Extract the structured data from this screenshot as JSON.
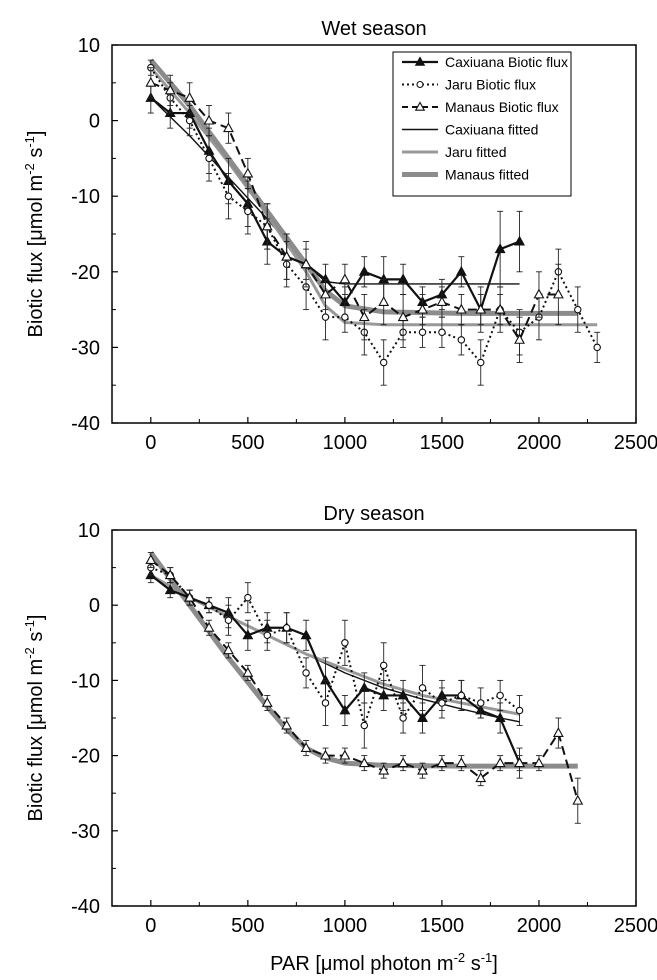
{
  "figure": {
    "xlabel_main": "PAR [μmol photon m",
    "xlabel_sup": "-2",
    "xlabel_sup2": "-1",
    "xlabel_s": " s",
    "xlabel_end": "]"
  },
  "chart_data": [
    {
      "type": "line",
      "title": "Wet season",
      "ylabel": "Biotic flux [μmol m-2 s-1]",
      "xlim": [
        -200,
        2500
      ],
      "ylim": [
        -40,
        10
      ],
      "x_ticks": [
        "0",
        "500",
        "1000",
        "1500",
        "2000",
        "2500"
      ],
      "y_ticks": [
        "10",
        "0",
        "-10",
        "-20",
        "-30",
        "-40"
      ],
      "legend_position": "top-right",
      "legend": [
        "Caxiuana Biotic flux",
        "Jaru Biotic flux",
        "Manaus Biotic flux",
        "Caxiuana fitted",
        "Jaru fitted",
        "Manaus fitted"
      ],
      "series": [
        {
          "name": "Caxiuana Biotic flux",
          "x": [
            0,
            100,
            200,
            300,
            400,
            500,
            600,
            700,
            800,
            900,
            1000,
            1100,
            1200,
            1300,
            1400,
            1500,
            1600,
            1700,
            1800,
            1900
          ],
          "y": [
            3,
            1,
            1,
            -4,
            -8,
            -11,
            -16,
            -18,
            -19,
            -21,
            -24,
            -20,
            -21,
            -21,
            -24,
            -23,
            -20,
            -25,
            -17,
            -16
          ],
          "err": [
            2,
            2,
            2,
            3,
            3,
            3,
            3,
            3,
            2,
            2,
            2,
            2,
            3,
            2,
            2,
            2,
            2,
            3,
            5,
            4
          ]
        },
        {
          "name": "Jaru Biotic flux",
          "x": [
            0,
            100,
            200,
            300,
            400,
            500,
            600,
            700,
            800,
            900,
            1000,
            1100,
            1200,
            1300,
            1400,
            1500,
            1600,
            1700,
            1800,
            1900,
            2000,
            2100,
            2200,
            2300
          ],
          "y": [
            7,
            3,
            0,
            -5,
            -10,
            -12,
            -14,
            -19,
            -22,
            -26,
            -26,
            -28,
            -32,
            -28,
            -28,
            -28,
            -29,
            -32,
            -25,
            -28,
            -26,
            -20,
            -25,
            -30
          ],
          "err": [
            1,
            2,
            2,
            3,
            3,
            3,
            3,
            3,
            3,
            3,
            2,
            3,
            3,
            2,
            2,
            2,
            2,
            3,
            2,
            3,
            3,
            3,
            3,
            2
          ]
        },
        {
          "name": "Manaus Biotic flux",
          "x": [
            0,
            100,
            200,
            300,
            400,
            500,
            600,
            700,
            800,
            900,
            1000,
            1100,
            1200,
            1300,
            1400,
            1500,
            1600,
            1700,
            1800,
            1900,
            2000,
            2100
          ],
          "y": [
            5,
            4,
            3,
            0,
            -1,
            -7,
            -14,
            -18,
            -19,
            -23,
            -21,
            -26,
            -24,
            -26,
            -25,
            -24,
            -25,
            -25,
            -25,
            -29,
            -23,
            -23
          ],
          "err": [
            2,
            2,
            2,
            2,
            2,
            2,
            3,
            3,
            3,
            2,
            2,
            3,
            3,
            3,
            2,
            2,
            2,
            2,
            3,
            3,
            3,
            4
          ]
        }
      ],
      "fitted": [
        {
          "name": "Caxiuana fitted",
          "x": [
            0,
            200,
            400,
            600,
            800,
            900,
            1000,
            1300,
            1600,
            1900
          ],
          "y": [
            3,
            -2,
            -7.5,
            -13,
            -19,
            -21.3,
            -21.6,
            -21.6,
            -21.6,
            -21.6
          ],
          "color": "#111111",
          "width": 1.4
        },
        {
          "name": "Jaru fitted",
          "x": [
            0,
            200,
            400,
            600,
            800,
            900,
            1000,
            1200,
            1600,
            2000,
            2300
          ],
          "y": [
            7,
            1,
            -5.5,
            -12.5,
            -20,
            -24.5,
            -26.7,
            -27,
            -27,
            -27,
            -27
          ],
          "color": "#999999",
          "width": 3
        },
        {
          "name": "Manaus fitted",
          "x": [
            0,
            200,
            400,
            600,
            800,
            900,
            1000,
            1200,
            1600,
            2000,
            2200
          ],
          "y": [
            8,
            2,
            -5,
            -12,
            -19,
            -22.5,
            -24.5,
            -25.3,
            -25.5,
            -25.5,
            -25.5
          ],
          "color": "#8c8c8c",
          "width": 5
        }
      ]
    },
    {
      "type": "line",
      "title": "Dry season",
      "ylabel": "Biotic flux [μmol m-2 s-1]",
      "xlim": [
        -200,
        2500
      ],
      "ylim": [
        -40,
        10
      ],
      "x_ticks": [
        "0",
        "500",
        "1000",
        "1500",
        "2000",
        "2500"
      ],
      "y_ticks": [
        "10",
        "0",
        "-10",
        "-20",
        "-30",
        "-40"
      ],
      "series": [
        {
          "name": "Caxiuana Biotic flux",
          "x": [
            0,
            100,
            200,
            300,
            400,
            500,
            600,
            700,
            800,
            900,
            1000,
            1100,
            1200,
            1300,
            1400,
            1500,
            1600,
            1700,
            1800,
            1900
          ],
          "y": [
            4,
            2,
            1,
            0,
            -1,
            -4,
            -3,
            -3,
            -4,
            -10,
            -14,
            -11,
            -12,
            -12,
            -15,
            -12,
            -12,
            -14,
            -15,
            -21
          ],
          "err": [
            1,
            1,
            1,
            1,
            2,
            2,
            2,
            2,
            2,
            3,
            2,
            2,
            2,
            2,
            2,
            2,
            2,
            1,
            2,
            2
          ]
        },
        {
          "name": "Jaru Biotic flux",
          "x": [
            0,
            100,
            200,
            300,
            400,
            500,
            600,
            700,
            800,
            900,
            1000,
            1100,
            1200,
            1300,
            1400,
            1500,
            1600,
            1700,
            1800,
            1900
          ],
          "y": [
            5,
            4,
            1,
            0,
            -2,
            1,
            -4,
            -3,
            -9,
            -13,
            -5,
            -16,
            -8,
            -15,
            -11,
            -13,
            -12,
            -13,
            -12,
            -14
          ],
          "err": [
            1,
            1,
            1,
            1,
            2,
            2,
            2,
            2,
            2,
            3,
            3,
            3,
            3,
            2,
            3,
            2,
            2,
            2,
            2,
            2
          ]
        },
        {
          "name": "Manaus Biotic flux",
          "x": [
            0,
            100,
            200,
            300,
            400,
            500,
            600,
            700,
            800,
            900,
            1000,
            1100,
            1200,
            1300,
            1400,
            1500,
            1600,
            1700,
            1800,
            1900,
            2000,
            2100,
            2200
          ],
          "y": [
            6,
            4,
            1,
            -3,
            -6,
            -9,
            -13,
            -16,
            -19,
            -20,
            -20,
            -21,
            -22,
            -21,
            -22,
            -21,
            -21,
            -23,
            -21,
            -21,
            -21,
            -17,
            -26
          ],
          "err": [
            1,
            1,
            1,
            1,
            1,
            1,
            1,
            1,
            1,
            1,
            1,
            1,
            1,
            1,
            1,
            1,
            1,
            1,
            1,
            1,
            1,
            2,
            3
          ]
        }
      ],
      "fitted": [
        {
          "name": "Caxiuana fitted",
          "x": [
            0,
            200,
            400,
            600,
            800,
            1000,
            1200,
            1400,
            1600,
            1800,
            1900
          ],
          "y": [
            4,
            1,
            -1.5,
            -4,
            -6.5,
            -9,
            -11,
            -12.5,
            -13.8,
            -15,
            -15.5
          ],
          "color": "#111111",
          "width": 1.4
        },
        {
          "name": "Jaru fitted",
          "x": [
            0,
            200,
            400,
            600,
            800,
            1000,
            1200,
            1400,
            1600,
            1800,
            1900
          ],
          "y": [
            4,
            1,
            -1.5,
            -4,
            -6.5,
            -8.5,
            -10.5,
            -12,
            -13,
            -14,
            -14.5
          ],
          "color": "#999999",
          "width": 3
        },
        {
          "name": "Manaus fitted",
          "x": [
            0,
            200,
            400,
            600,
            700,
            800,
            900,
            1000,
            1200,
            1600,
            2000,
            2200
          ],
          "y": [
            7,
            0,
            -7,
            -13.5,
            -16.5,
            -19,
            -20.3,
            -21,
            -21.3,
            -21.4,
            -21.4,
            -21.4
          ],
          "color": "#8c8c8c",
          "width": 5
        }
      ]
    }
  ]
}
